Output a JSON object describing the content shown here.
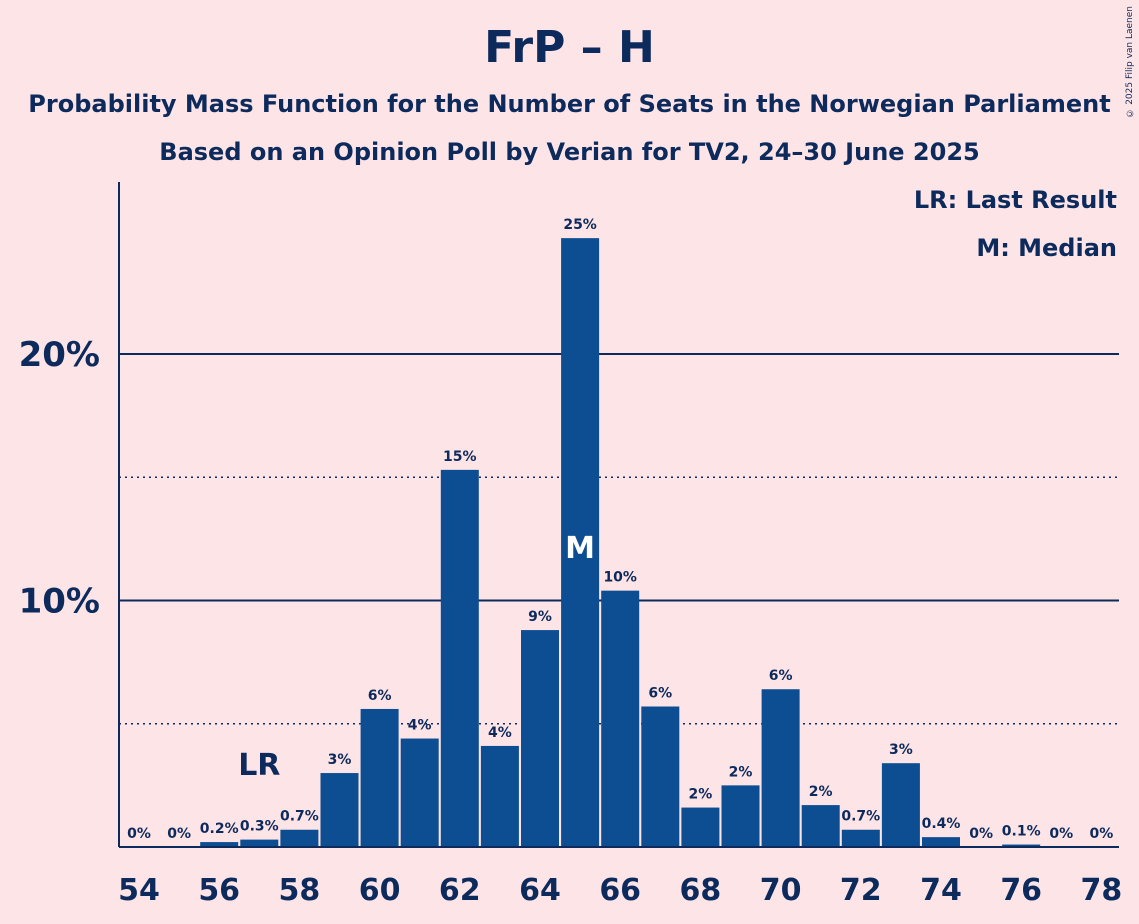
{
  "chart_data": {
    "type": "bar",
    "title": "FrP – H",
    "subtitle_lines": [
      "Probability Mass Function for the Number of Seats in the Norwegian Parliament",
      "Based on an Opinion Poll by Verian for TV2, 24–30 June 2025"
    ],
    "xlabel": "",
    "ylabel": "",
    "ylim": [
      0,
      27
    ],
    "y_ticks": [
      {
        "value": 10,
        "label": "10%"
      },
      {
        "value": 20,
        "label": "20%"
      }
    ],
    "y_minor_ticks": [
      5,
      15
    ],
    "x_tick_labels": [
      "54",
      "56",
      "58",
      "60",
      "62",
      "64",
      "66",
      "68",
      "70",
      "72",
      "74",
      "76",
      "78"
    ],
    "categories": [
      54,
      55,
      56,
      57,
      58,
      59,
      60,
      61,
      62,
      63,
      64,
      65,
      66,
      67,
      68,
      69,
      70,
      71,
      72,
      73,
      74,
      75,
      76,
      77,
      78
    ],
    "values": [
      0,
      0,
      0.2,
      0.3,
      0.7,
      3.0,
      5.6,
      4.4,
      15.3,
      4.1,
      8.8,
      24.7,
      10.4,
      5.7,
      1.6,
      2.5,
      6.4,
      1.7,
      0.7,
      3.4,
      0.4,
      0,
      0.1,
      0,
      0
    ],
    "data_labels": [
      "0%",
      "0%",
      "0.2%",
      "0.3%",
      "0.7%",
      "3%",
      "6%",
      "4%",
      "15%",
      "4%",
      "9%",
      "25%",
      "10%",
      "6%",
      "2%",
      "2%",
      "6%",
      "2%",
      "0.7%",
      "3%",
      "0.4%",
      "0%",
      "0.1%",
      "0%",
      "0%"
    ],
    "last_result": {
      "seat": 57,
      "label": "LR"
    },
    "median": {
      "seat": 65,
      "label": "M"
    },
    "legend": [
      "LR: Last Result",
      "M: Median"
    ],
    "legend_position": "top-right",
    "colors": {
      "bar": "#0d4d92",
      "text": "#0d2a5c",
      "background": "#fde4e6"
    }
  },
  "copyright": "© 2025 Filip van Laenen"
}
